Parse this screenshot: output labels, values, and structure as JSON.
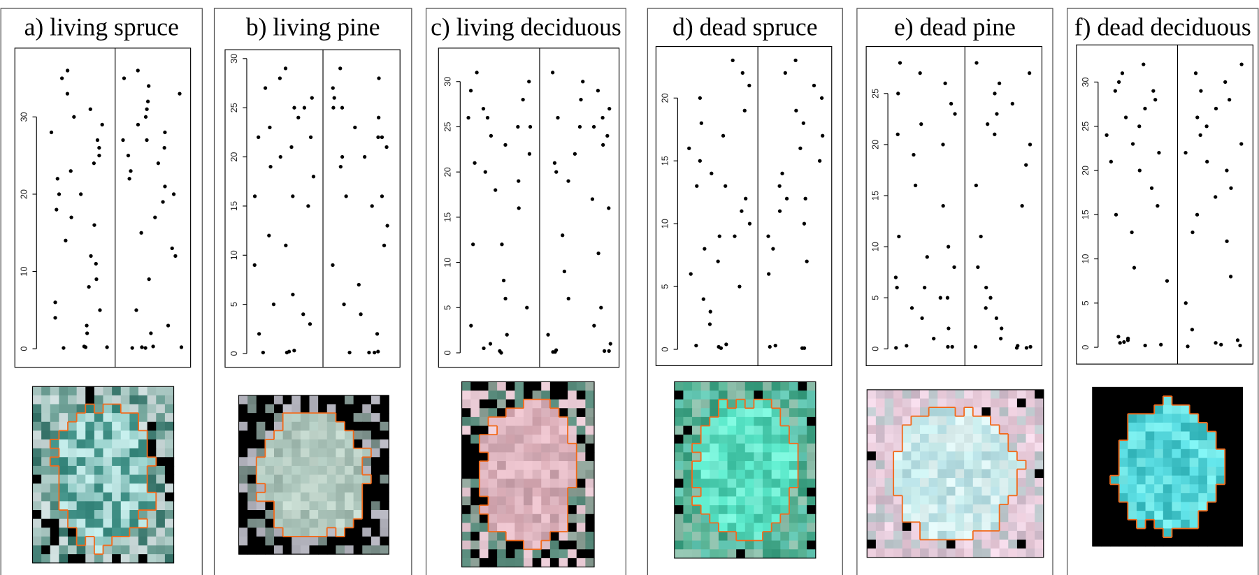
{
  "chart_data": [
    {
      "type": "strip",
      "title": "a) living spruce",
      "categories": [
        null,
        null
      ],
      "color": "#000000",
      "grid": false,
      "ylim": [
        -2.4,
        38.9
      ],
      "yticks": [
        0,
        10,
        20,
        30
      ],
      "values": [
        [
          0.2,
          0.1,
          0.3,
          0.2,
          2,
          3,
          4,
          5,
          8,
          9,
          12,
          14,
          16,
          18,
          20,
          20,
          22,
          24,
          25,
          27,
          28,
          30,
          31,
          33,
          35,
          36,
          29,
          26,
          23,
          17,
          11,
          6
        ],
        [
          0.1,
          0.2,
          0.1,
          0.3,
          0.2,
          2,
          3,
          5,
          9,
          12,
          13,
          15,
          17,
          20,
          21,
          22,
          24,
          25,
          26,
          27,
          28,
          29,
          30,
          31,
          32,
          33,
          34,
          35,
          36,
          23,
          19,
          27
        ]
      ]
    },
    {
      "type": "strip",
      "title": "b) living pine",
      "categories": [
        null,
        null
      ],
      "color": "#000000",
      "grid": false,
      "ylim": [
        -1.4,
        30.9
      ],
      "yticks": [
        0,
        5,
        10,
        15,
        20,
        25,
        30
      ],
      "values": [
        [
          0.1,
          0.2,
          0.1,
          0.3,
          2,
          3,
          4,
          5,
          6,
          9,
          11,
          12,
          15,
          16,
          16,
          18,
          19,
          20,
          21,
          22,
          22,
          23,
          24,
          25,
          25,
          26,
          27,
          28,
          29
        ],
        [
          0.1,
          0.1,
          0.2,
          0.1,
          2,
          4,
          5,
          7,
          9,
          11,
          13,
          15,
          16,
          16,
          19,
          20,
          20,
          21,
          22,
          22,
          23,
          24,
          25,
          25,
          26,
          27,
          28,
          29
        ]
      ]
    },
    {
      "type": "strip",
      "title": "c) living deciduous",
      "categories": [
        null,
        null
      ],
      "color": "#000000",
      "grid": false,
      "ylim": [
        -1.6,
        33.7
      ],
      "yticks": [
        0,
        5,
        10,
        15,
        20,
        25,
        30
      ],
      "values": [
        [
          0,
          0.2,
          0.5,
          1,
          2,
          3,
          5,
          6,
          8,
          12,
          12,
          16,
          18,
          19,
          20,
          21,
          22,
          23,
          24,
          25,
          25,
          26,
          26,
          27,
          28,
          29,
          30,
          31
        ],
        [
          0.1,
          0.2,
          0.1,
          0.3,
          0.2,
          1,
          2,
          3,
          5,
          6,
          9,
          11,
          13,
          16,
          17,
          19,
          20,
          21,
          22,
          23,
          24,
          25,
          25,
          26,
          26,
          27,
          28,
          29,
          30,
          31
        ]
      ]
    },
    {
      "type": "strip",
      "title": "d) dead spruce",
      "categories": [
        null,
        null
      ],
      "color": "#000000",
      "grid": false,
      "ylim": [
        -1.3,
        24.1
      ],
      "yticks": [
        0,
        5,
        10,
        15,
        20
      ],
      "values": [
        [
          0.2,
          0.3,
          0.1,
          0.4,
          2,
          3,
          4,
          5,
          6,
          7,
          8,
          9,
          9,
          10,
          11,
          12,
          13,
          13,
          14,
          15,
          16,
          17,
          18,
          19,
          20,
          21,
          22,
          23
        ],
        [
          0.1,
          0.1,
          0.2,
          0.3,
          6,
          7,
          8,
          9,
          10,
          11,
          12,
          12,
          13,
          14,
          15,
          16,
          17,
          18,
          19,
          20,
          21,
          22,
          23
        ]
      ]
    },
    {
      "type": "strip",
      "title": "e) dead pine",
      "categories": [
        null,
        null
      ],
      "color": "#000000",
      "grid": false,
      "ylim": [
        -1.65,
        29.6
      ],
      "yticks": [
        0,
        5,
        10,
        15,
        20,
        25
      ],
      "values": [
        [
          0.1,
          0.2,
          0.3,
          0.2,
          1,
          2,
          3,
          4,
          5,
          5,
          6,
          6,
          7,
          8,
          9,
          10,
          11,
          14,
          16,
          19,
          20,
          21,
          22,
          23,
          24,
          25,
          26,
          27,
          28
        ],
        [
          0.1,
          0.2,
          0.1,
          0.3,
          0.2,
          1,
          2,
          3,
          4,
          5,
          6,
          8,
          11,
          14,
          16,
          18,
          20,
          21,
          22,
          23,
          24,
          25,
          26,
          27,
          28
        ]
      ]
    },
    {
      "type": "strip",
      "title": "f) dead deciduous",
      "categories": [
        null,
        null
      ],
      "color": "#000000",
      "grid": false,
      "ylim": [
        -1.9,
        34.2
      ],
      "yticks": [
        0,
        5,
        10,
        15,
        20,
        25,
        30
      ],
      "values": [
        [
          0.2,
          0.5,
          0.8,
          1,
          1.2,
          0.6,
          0.3,
          7.5,
          9,
          13,
          15,
          16,
          18,
          20,
          21,
          22,
          23,
          24,
          25,
          26,
          27,
          28,
          29,
          29,
          30,
          31,
          32
        ],
        [
          0.1,
          0.2,
          0.5,
          0.3,
          0.8,
          2,
          5,
          8,
          12,
          13,
          15,
          17,
          18,
          20,
          21,
          22,
          23,
          24,
          25,
          26,
          27,
          28,
          29,
          30,
          31,
          32
        ]
      ]
    }
  ]
}
